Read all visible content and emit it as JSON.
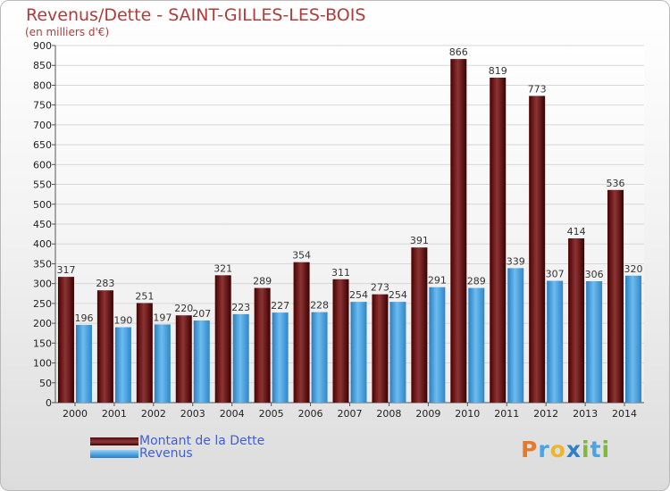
{
  "chart_data": {
    "type": "bar",
    "title": "Revenus/Dette - SAINT-GILLES-LES-BOIS",
    "subtitle": "(en milliers d'€)",
    "categories": [
      "2000",
      "2001",
      "2002",
      "2003",
      "2004",
      "2005",
      "2006",
      "2007",
      "2008",
      "2009",
      "2010",
      "2011",
      "2012",
      "2013",
      "2014"
    ],
    "series": [
      {
        "name": "Montant de la Dette",
        "color": "#6e1414",
        "values": [
          317,
          283,
          251,
          220,
          321,
          289,
          354,
          311,
          273,
          391,
          866,
          819,
          773,
          414,
          536
        ]
      },
      {
        "name": "Revenus",
        "color": "#4aa3e4",
        "values": [
          196,
          190,
          197,
          207,
          223,
          227,
          228,
          254,
          254,
          291,
          289,
          339,
          307,
          306,
          320
        ]
      }
    ],
    "ylim": [
      0,
      900
    ],
    "yticks": [
      0,
      50,
      100,
      150,
      200,
      250,
      300,
      350,
      400,
      450,
      500,
      550,
      600,
      650,
      700,
      750,
      800,
      850,
      900
    ],
    "grid": true,
    "legend": "bottom-left"
  },
  "legend": {
    "debt_label": "Montant de la Dette",
    "revenue_label": "Revenus"
  },
  "logo": {
    "text": "Proxiti"
  }
}
